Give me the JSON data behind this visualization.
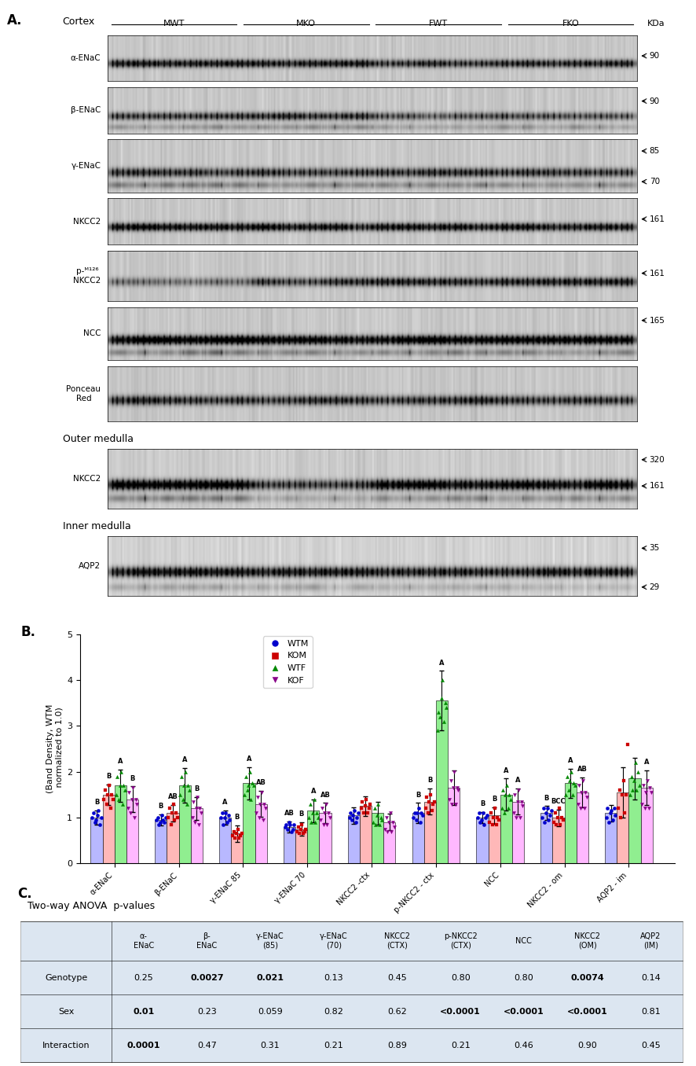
{
  "fig_width": 8.86,
  "fig_height": 13.56,
  "background_color": "#ffffff",
  "panel_A_label": "A.",
  "cortex_label": "Cortex",
  "group_labels": [
    "MWT",
    "MKO",
    "FWT",
    "FKO"
  ],
  "kda_label": "KDa",
  "outer_medulla_label": "Outer medulla",
  "inner_medulla_label": "Inner medulla",
  "panel_B_label": "B.",
  "ylabel": "(Band Density, WTM\n normalized to 1.0)",
  "ylim": [
    0,
    5
  ],
  "yticks": [
    0,
    1,
    2,
    3,
    4,
    5
  ],
  "x_tick_labels": [
    "α-ENaC",
    "β-ENaC",
    "γ-ENaC 85",
    "γ-ENaC 70",
    "NKCC2 -ctx",
    "p-NKCC2 - ctx",
    "NCC",
    "NKCC2 - om",
    "AQP2 - im"
  ],
  "bar_colors": {
    "WTM": "#b8b8ff",
    "KOM": "#ffb8b8",
    "WTF": "#90ee90",
    "KOF": "#ffb8ff"
  },
  "bar_data": {
    "WTM": [
      1.0,
      0.95,
      1.0,
      0.8,
      1.05,
      1.1,
      1.0,
      1.1,
      1.1
    ],
    "KOM": [
      1.5,
      1.1,
      0.65,
      0.75,
      1.25,
      1.35,
      1.05,
      1.0,
      1.55
    ],
    "WTF": [
      1.7,
      1.7,
      1.75,
      1.15,
      1.1,
      3.55,
      1.5,
      1.75,
      1.85
    ],
    "KOF": [
      1.4,
      1.2,
      1.3,
      1.1,
      0.9,
      1.65,
      1.35,
      1.55,
      1.65
    ]
  },
  "error_data": {
    "WTM": [
      0.15,
      0.12,
      0.15,
      0.12,
      0.18,
      0.22,
      0.12,
      0.15,
      0.18
    ],
    "KOM": [
      0.22,
      0.18,
      0.18,
      0.15,
      0.22,
      0.28,
      0.18,
      0.18,
      0.55
    ],
    "WTF": [
      0.35,
      0.38,
      0.35,
      0.25,
      0.25,
      0.65,
      0.35,
      0.32,
      0.45
    ],
    "KOF": [
      0.28,
      0.25,
      0.28,
      0.22,
      0.18,
      0.38,
      0.28,
      0.32,
      0.38
    ]
  },
  "significance_labels": {
    "0": {
      "WTM": "B",
      "KOM": "B",
      "WTF": "A",
      "KOF": "B"
    },
    "1": {
      "WTM": "B",
      "KOM": "AB",
      "WTF": "A",
      "KOF": "B"
    },
    "2": {
      "WTM": "A",
      "KOM": "B",
      "WTF": "A",
      "KOF": "AB"
    },
    "3": {
      "WTM": "AB",
      "KOM": "B",
      "WTF": "A",
      "KOF": "AB"
    },
    "4": {},
    "5": {
      "WTM": "B",
      "KOM": "B",
      "WTF": "A"
    },
    "6": {
      "WTM": "B",
      "KOM": "B",
      "WTF": "A",
      "KOF": "A"
    },
    "7": {
      "WTM": "B",
      "KOM": "BCC",
      "WTF": "A",
      "KOF": "AB"
    },
    "8": {
      "KOF": "A"
    }
  },
  "scatter_data": {
    "WTM": {
      "0": [
        1.0,
        1.1,
        0.9,
        0.95,
        1.05,
        1.15,
        0.85,
        1.0
      ],
      "1": [
        0.95,
        1.0,
        0.85,
        0.9,
        1.05,
        0.95,
        0.9,
        1.0
      ],
      "2": [
        1.0,
        1.1,
        0.85,
        1.0,
        1.1,
        0.9,
        1.05,
        0.95
      ],
      "3": [
        0.8,
        0.85,
        0.75,
        0.9,
        0.85,
        0.7,
        0.75,
        0.85
      ],
      "4": [
        1.0,
        1.1,
        0.95,
        1.05,
        1.15,
        0.9,
        1.0,
        1.1
      ],
      "5": [
        1.0,
        1.1,
        0.95,
        1.1,
        1.2,
        0.9,
        1.1,
        1.05
      ],
      "6": [
        1.0,
        1.1,
        0.9,
        0.95,
        1.1,
        0.85,
        1.0,
        1.05
      ],
      "7": [
        1.0,
        1.2,
        0.9,
        1.1,
        1.2,
        0.95,
        1.05,
        1.15
      ],
      "8": [
        1.0,
        1.2,
        0.9,
        1.1,
        1.15,
        0.95,
        1.2,
        1.05
      ]
    },
    "KOM": {
      "0": [
        1.4,
        1.6,
        1.3,
        1.5,
        1.7,
        1.2,
        1.5,
        1.4
      ],
      "1": [
        1.0,
        1.2,
        0.85,
        1.1,
        1.3,
        0.95,
        1.1,
        1.0
      ],
      "2": [
        0.6,
        0.7,
        0.55,
        0.65,
        0.75,
        0.55,
        0.6,
        0.65
      ],
      "3": [
        0.7,
        0.8,
        0.65,
        0.75,
        0.85,
        0.65,
        0.7,
        0.75
      ],
      "4": [
        1.2,
        1.35,
        1.1,
        1.25,
        1.4,
        1.1,
        1.2,
        1.3
      ],
      "5": [
        1.2,
        1.45,
        1.1,
        1.35,
        1.5,
        1.15,
        1.3,
        1.35
      ],
      "6": [
        0.9,
        1.1,
        0.85,
        1.0,
        1.2,
        0.85,
        1.0,
        0.95
      ],
      "7": [
        0.9,
        1.1,
        0.85,
        1.0,
        1.2,
        0.85,
        1.0,
        0.95
      ],
      "8": [
        1.2,
        1.6,
        1.0,
        1.5,
        1.8,
        1.1,
        1.5,
        2.6
      ]
    },
    "WTF": {
      "0": [
        1.5,
        1.9,
        1.4,
        1.7,
        2.0,
        1.3,
        1.7,
        1.6
      ],
      "1": [
        1.5,
        1.9,
        1.4,
        1.7,
        2.0,
        1.3,
        1.7,
        1.6
      ],
      "2": [
        1.5,
        1.9,
        1.6,
        1.7,
        2.0,
        1.4,
        1.75,
        1.7
      ],
      "3": [
        1.0,
        1.3,
        0.9,
        1.1,
        1.4,
        0.9,
        1.1,
        1.0
      ],
      "4": [
        0.9,
        1.2,
        0.85,
        1.05,
        1.3,
        0.85,
        1.0,
        0.95
      ],
      "5": [
        2.9,
        3.3,
        3.2,
        3.6,
        4.0,
        3.1,
        3.5,
        3.4
      ],
      "6": [
        1.2,
        1.6,
        1.1,
        1.5,
        1.7,
        1.2,
        1.5,
        1.4
      ],
      "7": [
        1.5,
        1.9,
        1.6,
        1.8,
        2.0,
        1.5,
        1.75,
        1.7
      ],
      "8": [
        1.5,
        1.9,
        1.6,
        1.8,
        2.2,
        1.6,
        2.0,
        1.7
      ]
    },
    "KOF": {
      "0": [
        1.2,
        1.55,
        1.1,
        1.4,
        1.65,
        1.0,
        1.4,
        1.3
      ],
      "1": [
        1.0,
        1.35,
        0.9,
        1.2,
        1.45,
        0.85,
        1.2,
        1.1
      ],
      "2": [
        1.1,
        1.45,
        1.0,
        1.3,
        1.55,
        0.95,
        1.3,
        1.2
      ],
      "3": [
        0.95,
        1.2,
        0.85,
        1.1,
        1.3,
        0.85,
        1.1,
        1.0
      ],
      "4": [
        0.75,
        1.0,
        0.7,
        0.9,
        1.1,
        0.7,
        0.9,
        0.8
      ],
      "5": [
        1.4,
        1.8,
        1.3,
        1.65,
        2.0,
        1.3,
        1.65,
        1.6
      ],
      "6": [
        1.1,
        1.5,
        1.0,
        1.35,
        1.6,
        1.0,
        1.35,
        1.25
      ],
      "7": [
        1.3,
        1.7,
        1.2,
        1.55,
        1.8,
        1.2,
        1.55,
        1.45
      ],
      "8": [
        1.3,
        1.7,
        1.2,
        1.55,
        1.8,
        1.2,
        1.65,
        1.55
      ]
    }
  },
  "panel_C_label": "C.",
  "table_title": "Two-way ANOVA  p-values",
  "table_rows": [
    [
      "Genotype",
      "0.25",
      "0.0027",
      "0.021",
      "0.13",
      "0.45",
      "0.80",
      "0.80",
      "0.0074",
      "0.14"
    ],
    [
      "Sex",
      "0.01",
      "0.23",
      "0.059",
      "0.82",
      "0.62",
      "<0.0001",
      "<0.0001",
      "<0.0001",
      "0.81"
    ],
    [
      "Interaction",
      "0.0001",
      "0.47",
      "0.31",
      "0.21",
      "0.89",
      "0.21",
      "0.46",
      "0.90",
      "0.45"
    ]
  ],
  "col_headers": [
    "α-\nENaC",
    "β-\nENaC",
    "γ-ENaC\n(85)",
    "γ-ENaC\n(70)",
    "NKCC2\n(CTX)",
    "p-NKCC2\n(CTX)",
    "NCC",
    "NKCC2\n(OM)",
    "AQP2\n(IM)"
  ],
  "bold_cells": {
    "0": [
      1,
      2,
      7
    ],
    "1": [
      0,
      5,
      6,
      7
    ],
    "2": [
      0
    ]
  }
}
